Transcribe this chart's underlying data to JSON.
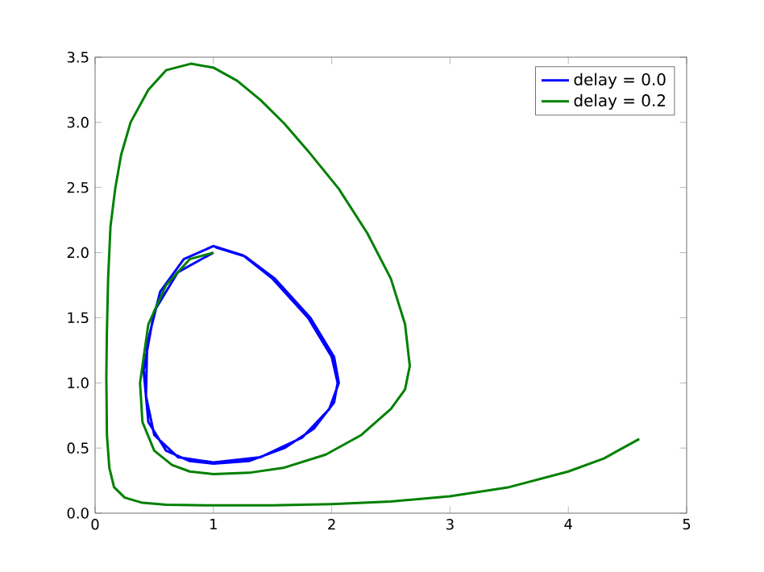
{
  "chart_data": {
    "type": "line",
    "xlim": [
      0,
      5
    ],
    "ylim": [
      0,
      3.5
    ],
    "xticks": [
      0,
      1,
      2,
      3,
      4,
      5
    ],
    "yticks": [
      {
        "value": 0,
        "label": "0.0"
      },
      {
        "value": 0.5,
        "label": "0.5"
      },
      {
        "value": 1,
        "label": "1.0"
      },
      {
        "value": 1.5,
        "label": "1.5"
      },
      {
        "value": 2,
        "label": "2.0"
      },
      {
        "value": 2.5,
        "label": "2.5"
      },
      {
        "value": 3,
        "label": "3.0"
      },
      {
        "value": 3.5,
        "label": "3.5"
      }
    ],
    "legend": "top right",
    "grid": false,
    "marker": "none",
    "line_style": "solid",
    "series": [
      {
        "name": "delay = 0.0",
        "color": "#0000ff",
        "x": [
          1.0,
          0.7,
          0.5,
          0.41,
          0.45,
          0.6,
          0.8,
          1.0,
          1.3,
          1.6,
          1.85,
          2.02,
          2.05,
          2.0,
          1.8,
          1.5,
          1.25,
          1.0,
          0.75,
          0.55,
          0.44,
          0.43,
          0.5,
          0.7,
          1.0,
          1.4,
          1.75,
          1.98,
          2.06,
          2.02,
          1.82,
          1.52,
          1.27,
          1.02
        ],
        "values": [
          2.0,
          1.85,
          1.55,
          1.1,
          0.7,
          0.48,
          0.4,
          0.38,
          0.4,
          0.5,
          0.65,
          0.85,
          1.0,
          1.2,
          1.5,
          1.8,
          1.98,
          2.05,
          1.95,
          1.7,
          1.3,
          0.9,
          0.6,
          0.43,
          0.39,
          0.43,
          0.58,
          0.8,
          1.0,
          1.2,
          1.5,
          1.8,
          1.97,
          2.04
        ]
      },
      {
        "name": "delay = 0.2",
        "color": "#008000",
        "x": [
          1.0,
          0.8,
          0.6,
          0.45,
          0.38,
          0.4,
          0.5,
          0.65,
          0.8,
          1.0,
          1.3,
          1.6,
          1.95,
          2.25,
          2.5,
          2.62,
          2.66,
          2.62,
          2.5,
          2.3,
          2.06,
          1.8,
          1.6,
          1.4,
          1.2,
          1.0,
          0.81,
          0.6,
          0.45,
          0.3,
          0.22,
          0.17,
          0.13,
          0.11,
          0.1,
          0.095,
          0.1,
          0.12,
          0.16,
          0.25,
          0.4,
          0.6,
          1.0,
          1.5,
          2.0,
          2.5,
          3.0,
          3.5,
          4.0,
          4.3,
          4.6
        ],
        "values": [
          2.0,
          1.95,
          1.75,
          1.45,
          1.0,
          0.7,
          0.48,
          0.37,
          0.32,
          0.3,
          0.31,
          0.35,
          0.45,
          0.6,
          0.8,
          0.95,
          1.13,
          1.45,
          1.8,
          2.15,
          2.49,
          2.78,
          2.99,
          3.17,
          3.32,
          3.42,
          3.45,
          3.4,
          3.25,
          3.0,
          2.75,
          2.49,
          2.2,
          1.8,
          1.4,
          1.05,
          0.6,
          0.35,
          0.2,
          0.12,
          0.08,
          0.065,
          0.06,
          0.06,
          0.07,
          0.09,
          0.13,
          0.2,
          0.32,
          0.42,
          0.57
        ]
      }
    ]
  }
}
